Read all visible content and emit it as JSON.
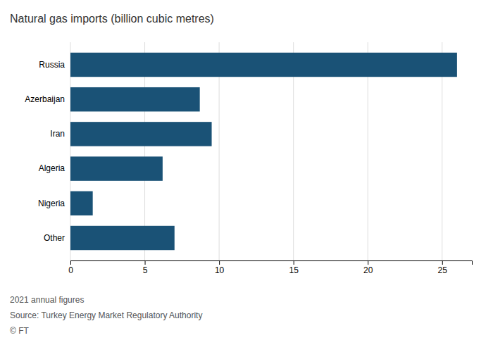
{
  "chart_data": {
    "type": "bar",
    "orientation": "horizontal",
    "title": "Natural gas imports (billion cubic metres)",
    "categories": [
      "Russia",
      "Azerbaijan",
      "Iran",
      "Algeria",
      "Nigeria",
      "Other"
    ],
    "values": [
      26.0,
      8.7,
      9.5,
      6.2,
      1.5,
      7.0
    ],
    "color": "#1a5276",
    "xlim": [
      0,
      27
    ],
    "xticks": [
      0,
      5,
      10,
      15,
      20,
      25
    ],
    "grid": true,
    "annotations": [
      "2021 annual figures",
      "Source: Turkey Energy Market Regulatory Authority",
      "© FT"
    ]
  }
}
